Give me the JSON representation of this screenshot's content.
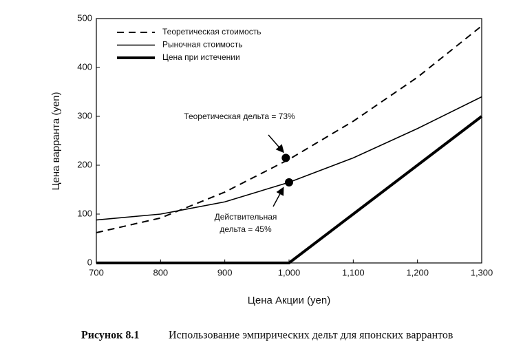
{
  "chart_data": {
    "type": "line",
    "xlabel": "Цена Акции (yen)",
    "ylabel": "Цена варранта (yen)",
    "x": [
      700,
      800,
      900,
      1000,
      1100,
      1200,
      1300
    ],
    "series": [
      {
        "name": "Теоретическая стоимость",
        "color": "#000000",
        "style": "dashed",
        "values": [
          62,
          92,
          145,
          212,
          290,
          380,
          485
        ]
      },
      {
        "name": "Рыночная стоимость",
        "color": "#000000",
        "style": "solid",
        "values": [
          88,
          100,
          125,
          165,
          215,
          275,
          340
        ]
      },
      {
        "name": "Цена при истечении",
        "color": "#000000",
        "style": "thick",
        "values": [
          0,
          0,
          0,
          0,
          100,
          200,
          300
        ]
      }
    ],
    "points": [
      {
        "x": 995,
        "y": 215
      },
      {
        "x": 1000,
        "y": 165
      }
    ],
    "annotations": [
      [
        "Теоретическая дельта = 73%"
      ],
      [
        "Действительная",
        "дельта = 45%"
      ]
    ],
    "xlim": [
      700,
      1300
    ],
    "ylim": [
      0,
      500
    ],
    "xticks": [
      700,
      800,
      900,
      {
        "value": 1000,
        "label": "1,000"
      },
      {
        "value": 1100,
        "label": "1,100"
      },
      {
        "value": 1200,
        "label": "1,200"
      },
      {
        "value": 1300,
        "label": "1,300"
      }
    ],
    "yticks": [
      0,
      100,
      200,
      300,
      400,
      500
    ],
    "legend": "upper left",
    "caption": {
      "label": "Рисунок 8.1",
      "text": "Использование эмпирических дельт для японских варрантов"
    }
  }
}
